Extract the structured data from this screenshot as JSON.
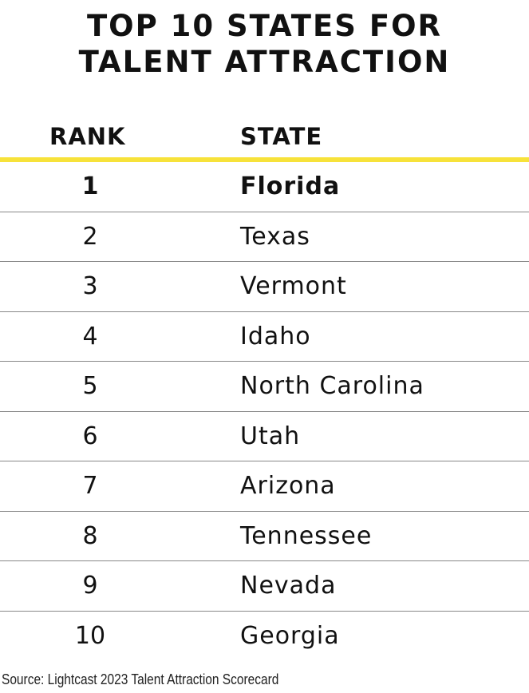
{
  "title": {
    "line1": "TOP 10 STATES FOR",
    "line2": "TALENT ATTRACTION"
  },
  "colors": {
    "accent_rule": "#f7e23a",
    "row_divider": "#888888",
    "text": "#111111"
  },
  "chart_data": {
    "type": "table",
    "title": "TOP 10 STATES FOR TALENT ATTRACTION",
    "columns": [
      "RANK",
      "STATE"
    ],
    "rows": [
      {
        "rank": "1",
        "state": "Florida"
      },
      {
        "rank": "2",
        "state": "Texas"
      },
      {
        "rank": "3",
        "state": "Vermont"
      },
      {
        "rank": "4",
        "state": "Idaho"
      },
      {
        "rank": "5",
        "state": "North Carolina"
      },
      {
        "rank": "6",
        "state": "Utah"
      },
      {
        "rank": "7",
        "state": "Arizona"
      },
      {
        "rank": "8",
        "state": "Tennessee"
      },
      {
        "rank": "9",
        "state": "Nevada"
      },
      {
        "rank": "10",
        "state": "Georgia"
      }
    ]
  },
  "source": "Source: Lightcast 2023 Talent Attraction Scorecard"
}
